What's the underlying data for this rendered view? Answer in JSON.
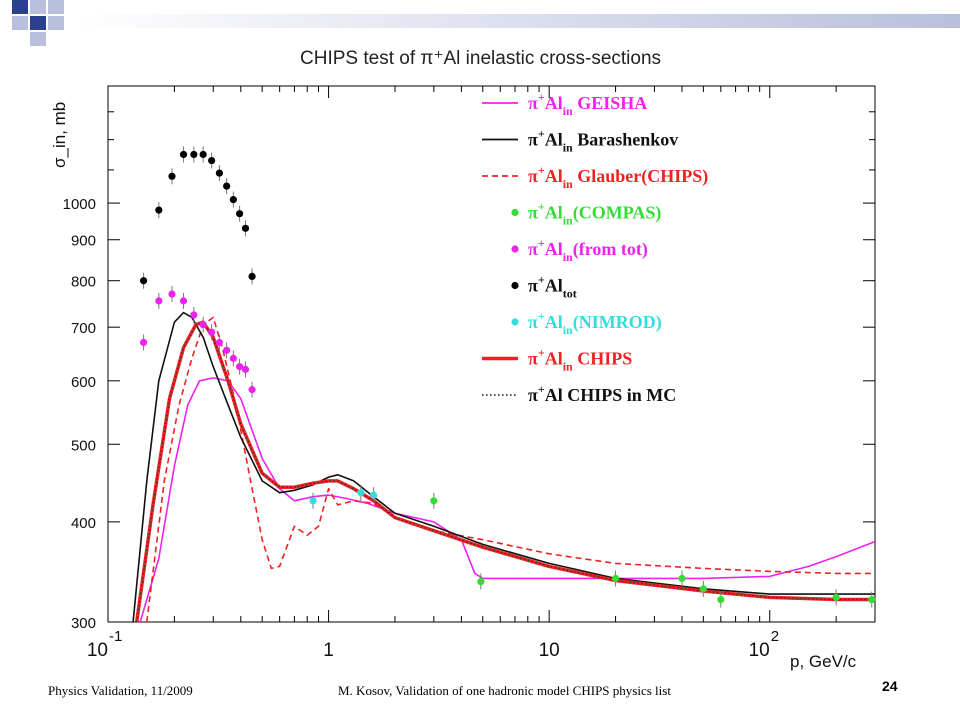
{
  "slide": {
    "title_text": "CHIPS test of π⁺Al inelastic cross-sections",
    "footer_left": "Physics Validation, 11/2009",
    "footer_center": "M. Kosov,  Validation of one hadronic model CHIPS physics list",
    "page_number": "24"
  },
  "colors": {
    "geisha": "#ee22ee",
    "barashenkov": "#111111",
    "glauber": "#ee2222",
    "compas": "#33dd33",
    "fromtot": "#ee22ee",
    "tot": "#000000",
    "nimrod": "#33dddd",
    "chips": "#ee2222",
    "chips_mc": "#333333",
    "deco_blue": "#2b3f8f",
    "deco_light": "#b9bfdc"
  },
  "chart_data": {
    "type": "line",
    "title": "CHIPS test of π⁺Al inelastic cross-sections",
    "xlabel": "p, GeV/c",
    "ylabel": "σ_in, mb",
    "xscale": "log",
    "yscale": "log",
    "xlim": [
      0.1,
      300
    ],
    "ylim": [
      300,
      1400
    ],
    "x_ticks": [
      {
        "base": "10",
        "exp": "-1"
      },
      {
        "base": "1",
        "exp": ""
      },
      {
        "base": "10",
        "exp": ""
      },
      {
        "base": "10",
        "exp": "2"
      }
    ],
    "y_ticks": [
      "300",
      "400",
      "500",
      "600",
      "700",
      "800",
      "900",
      "1000"
    ],
    "legend_position": "top-right",
    "series": [
      {
        "key": "geisha",
        "name": "π⁺Al_in GEISHA",
        "legend": {
          "base": "π",
          "sup": "+",
          "mid": "Al",
          "sub": "in",
          "rest": " GEISHA"
        },
        "style": "solid",
        "x": [
          0.14,
          0.17,
          0.2,
          0.23,
          0.26,
          0.3,
          0.35,
          0.4,
          0.5,
          0.6,
          0.7,
          0.85,
          1.0,
          1.2,
          1.5,
          2.0,
          3.0,
          4.0,
          4.6,
          5.0,
          10,
          20,
          50,
          100,
          150,
          200,
          300
        ],
        "y": [
          300,
          360,
          470,
          560,
          600,
          605,
          600,
          570,
          480,
          440,
          425,
          430,
          432,
          428,
          422,
          410,
          400,
          380,
          345,
          340,
          340,
          340,
          340,
          342,
          352,
          362,
          378
        ]
      },
      {
        "key": "barashenkov",
        "name": "π⁺Al_in Barashenkov",
        "legend": {
          "base": "π",
          "sup": "+",
          "mid": "Al",
          "sub": "in",
          "rest": " Barashenkov"
        },
        "style": "solid",
        "x": [
          0.13,
          0.15,
          0.17,
          0.2,
          0.22,
          0.24,
          0.27,
          0.3,
          0.35,
          0.4,
          0.5,
          0.6,
          0.7,
          0.85,
          1.0,
          1.1,
          1.3,
          1.6,
          2.0,
          3.0,
          5.0,
          10,
          20,
          50,
          100,
          200,
          300
        ],
        "y": [
          300,
          450,
          600,
          710,
          730,
          720,
          680,
          625,
          560,
          510,
          450,
          435,
          438,
          445,
          455,
          458,
          450,
          430,
          410,
          395,
          375,
          355,
          340,
          330,
          325,
          325,
          325
        ]
      },
      {
        "key": "glauber",
        "name": "π⁺Al_in Glauber(CHIPS)",
        "legend": {
          "base": "π",
          "sup": "+",
          "mid": "Al",
          "sub": "in",
          "rest": " Glauber(CHIPS)"
        },
        "style": "dashed",
        "x": [
          0.15,
          0.18,
          0.21,
          0.24,
          0.27,
          0.3,
          0.33,
          0.38,
          0.45,
          0.5,
          0.55,
          0.6,
          0.7,
          0.8,
          0.9,
          1.0,
          1.1,
          1.3,
          1.6,
          2.0,
          3.0,
          5.0,
          10,
          20,
          50,
          100,
          200,
          300
        ],
        "y": [
          300,
          450,
          560,
          640,
          705,
          720,
          660,
          560,
          440,
          380,
          350,
          352,
          395,
          385,
          395,
          440,
          420,
          425,
          422,
          405,
          390,
          380,
          365,
          355,
          350,
          347,
          345,
          345
        ]
      },
      {
        "key": "chips",
        "name": "π⁺Al_in CHIPS",
        "legend": {
          "base": "π",
          "sup": "+",
          "mid": "Al",
          "sub": "in",
          "rest": " CHIPS"
        },
        "style": "solid-thick",
        "x": [
          0.135,
          0.16,
          0.19,
          0.22,
          0.25,
          0.27,
          0.3,
          0.35,
          0.4,
          0.5,
          0.6,
          0.7,
          0.85,
          1.0,
          1.1,
          1.3,
          1.6,
          2.0,
          3.0,
          5.0,
          10,
          20,
          50,
          100,
          200,
          300
        ],
        "y": [
          300,
          420,
          570,
          660,
          705,
          710,
          680,
          600,
          530,
          460,
          442,
          442,
          447,
          450,
          450,
          440,
          425,
          405,
          390,
          372,
          352,
          338,
          328,
          322,
          320,
          320
        ]
      },
      {
        "key": "chips_mc",
        "name": "π⁺Al CHIPS in MC",
        "legend": {
          "base": "π",
          "sup": "+",
          "mid": "Al",
          "sub": "",
          "rest": " CHIPS in MC"
        },
        "style": "dotted",
        "x": [
          0.135,
          0.16,
          0.19,
          0.22,
          0.25,
          0.27,
          0.3,
          0.35,
          0.4,
          0.5,
          0.6,
          0.7,
          0.85,
          1.0,
          1.1,
          1.3,
          1.6,
          2.0,
          3.0,
          5.0,
          10,
          20,
          50,
          100,
          200,
          300
        ],
        "y": [
          300,
          420,
          570,
          660,
          705,
          710,
          680,
          600,
          530,
          460,
          442,
          442,
          447,
          450,
          450,
          440,
          425,
          405,
          390,
          372,
          352,
          338,
          328,
          322,
          320,
          320
        ]
      },
      {
        "key": "compas",
        "name": "π⁺Al_in(COMPAS)",
        "legend": {
          "base": "π",
          "sup": "+",
          "mid": "Al",
          "sub": "in",
          "rest": "(COMPAS)"
        },
        "style": "points",
        "x": [
          3.0,
          4.9,
          20,
          40,
          50,
          60,
          200,
          290
        ],
        "y": [
          425,
          337,
          340,
          340,
          330,
          320,
          322,
          320
        ]
      },
      {
        "key": "fromtot",
        "name": "π⁺Al_in(from tot)",
        "legend": {
          "base": "π",
          "sup": "+",
          "mid": "Al",
          "sub": "in",
          "rest": "(from tot)"
        },
        "style": "points",
        "x": [
          0.145,
          0.17,
          0.195,
          0.22,
          0.245,
          0.27,
          0.295,
          0.32,
          0.345,
          0.37,
          0.395,
          0.42,
          0.45
        ],
        "y": [
          670,
          755,
          770,
          755,
          725,
          705,
          690,
          670,
          655,
          640,
          625,
          620,
          585
        ]
      },
      {
        "key": "tot",
        "name": "π⁺Al_tot",
        "legend": {
          "base": "π",
          "sup": "+",
          "mid": "Al",
          "sub": "tot",
          "rest": ""
        },
        "style": "points",
        "x": [
          0.145,
          0.17,
          0.195,
          0.22,
          0.245,
          0.27,
          0.295,
          0.32,
          0.345,
          0.37,
          0.395,
          0.42,
          0.45
        ],
        "y": [
          800,
          980,
          1080,
          1150,
          1150,
          1150,
          1130,
          1090,
          1050,
          1010,
          970,
          930,
          810
        ]
      },
      {
        "key": "nimrod",
        "name": "π⁺Al_in(NIMROD)",
        "legend": {
          "base": "π",
          "sup": "+",
          "mid": "Al",
          "sub": "in",
          "rest": "(NIMROD)"
        },
        "style": "points",
        "x": [
          0.85,
          1.4,
          1.6
        ],
        "y": [
          425,
          435,
          432
        ]
      }
    ]
  }
}
